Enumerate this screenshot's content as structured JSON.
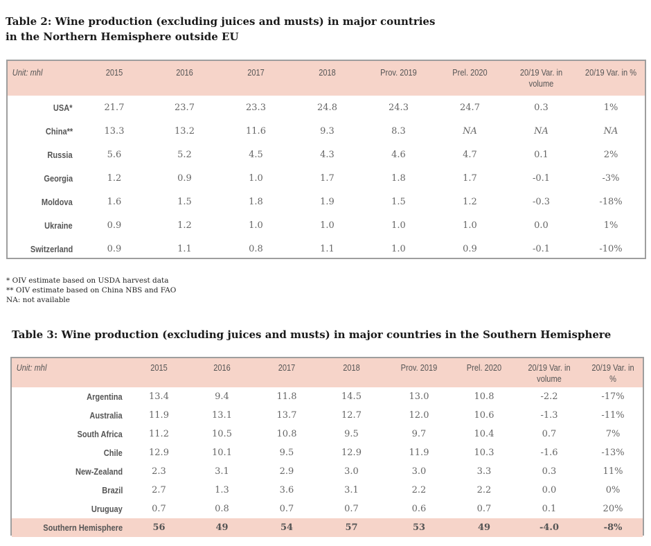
{
  "table2": {
    "title_line1": "Table 2: Wine production (excluding juices and musts) in major countries",
    "title_line2": "in the Northern Hemisphere outside EU",
    "headers": [
      "Unit: mhl",
      "2015",
      "2016",
      "2017",
      "2018",
      "Prov. 2019",
      "Prel. 2020",
      "20/19 Var. in volume",
      "20/19 Var. in %"
    ],
    "rows": [
      {
        "country": "USA*",
        "values": [
          "21.7",
          "23.7",
          "23.3",
          "24.8",
          "24.3",
          "24.7",
          "0.3",
          "1%"
        ]
      },
      {
        "country": "China**",
        "values": [
          "13.3",
          "13.2",
          "11.6",
          "9.3",
          "8.3",
          "NA",
          "NA",
          "NA"
        ]
      },
      {
        "country": "Russia",
        "values": [
          "5.6",
          "5.2",
          "4.5",
          "4.3",
          "4.6",
          "4.7",
          "0.1",
          "2%"
        ]
      },
      {
        "country": "Georgia",
        "values": [
          "1.2",
          "0.9",
          "1.0",
          "1.7",
          "1.8",
          "1.7",
          "-0.1",
          "-3%"
        ]
      },
      {
        "country": "Moldova",
        "values": [
          "1.6",
          "1.5",
          "1.8",
          "1.9",
          "1.5",
          "1.2",
          "-0.3",
          "-18%"
        ]
      },
      {
        "country": "Ukraine",
        "values": [
          "0.9",
          "1.2",
          "1.0",
          "1.0",
          "1.0",
          "1.0",
          "0.0",
          "1%"
        ]
      },
      {
        "country": "Switzerland",
        "values": [
          "0.9",
          "1.1",
          "0.8",
          "1.1",
          "1.0",
          "0.9",
          "-0.1",
          "-10%"
        ]
      }
    ],
    "notes": [
      "* OIV estimate based on USDA harvest data",
      "** OIV estimate based on China NBS and FAO",
      "NA: not available"
    ]
  },
  "table3": {
    "title": "Table 3: Wine production (excluding juices and musts) in major countries in the Southern Hemisphere",
    "headers": [
      "Unit: mhl",
      "2015",
      "2016",
      "2017",
      "2018",
      "Prov. 2019",
      "Prel. 2020",
      "20/19 Var. in volume",
      "20/19 Var. in %"
    ],
    "rows": [
      {
        "country": "Argentina",
        "values": [
          "13.4",
          "9.4",
          "11.8",
          "14.5",
          "13.0",
          "10.8",
          "-2.2",
          "-17%"
        ]
      },
      {
        "country": "Australia",
        "values": [
          "11.9",
          "13.1",
          "13.7",
          "12.7",
          "12.0",
          "10.6",
          "-1.3",
          "-11%"
        ]
      },
      {
        "country": "South Africa",
        "values": [
          "11.2",
          "10.5",
          "10.8",
          "9.5",
          "9.7",
          "10.4",
          "0.7",
          "7%"
        ]
      },
      {
        "country": "Chile",
        "values": [
          "12.9",
          "10.1",
          "9.5",
          "12.9",
          "11.9",
          "10.3",
          "-1.6",
          "-13%"
        ]
      },
      {
        "country": "New-Zealand",
        "values": [
          "2.3",
          "3.1",
          "2.9",
          "3.0",
          "3.0",
          "3.3",
          "0.3",
          "11%"
        ]
      },
      {
        "country": "Brazil",
        "values": [
          "2.7",
          "1.3",
          "3.6",
          "3.1",
          "2.2",
          "2.2",
          "0.0",
          "0%"
        ]
      },
      {
        "country": "Uruguay",
        "values": [
          "0.7",
          "0.8",
          "0.7",
          "0.7",
          "0.6",
          "0.7",
          "0.1",
          "20%"
        ]
      }
    ],
    "total": {
      "country": "Southern Hemisphere",
      "values": [
        "56",
        "49",
        "54",
        "57",
        "53",
        "49",
        "-4.0",
        "-8%"
      ]
    }
  },
  "colors": {
    "header_bg": "#f6d4c9",
    "border": "#9e9e9e"
  }
}
